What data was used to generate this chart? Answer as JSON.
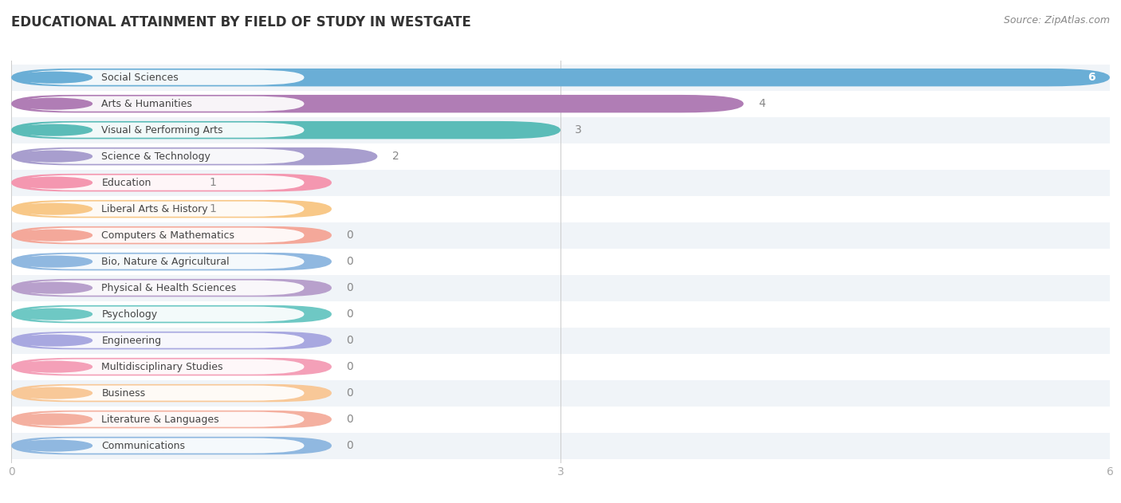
{
  "title": "EDUCATIONAL ATTAINMENT BY FIELD OF STUDY IN WESTGATE",
  "source": "Source: ZipAtlas.com",
  "categories": [
    "Social Sciences",
    "Arts & Humanities",
    "Visual & Performing Arts",
    "Science & Technology",
    "Education",
    "Liberal Arts & History",
    "Computers & Mathematics",
    "Bio, Nature & Agricultural",
    "Physical & Health Sciences",
    "Psychology",
    "Engineering",
    "Multidisciplinary Studies",
    "Business",
    "Literature & Languages",
    "Communications"
  ],
  "values": [
    6,
    4,
    3,
    2,
    1,
    1,
    0,
    0,
    0,
    0,
    0,
    0,
    0,
    0,
    0
  ],
  "bar_colors": [
    "#6aaed6",
    "#b07db5",
    "#5bbcb8",
    "#a89ece",
    "#f497b0",
    "#f8c888",
    "#f4a89a",
    "#90b8e0",
    "#b8a0cc",
    "#6ec8c4",
    "#a8a8e0",
    "#f4a0b8",
    "#f8c898",
    "#f4b0a0",
    "#90b8e0"
  ],
  "xlim": [
    0,
    6
  ],
  "xticks": [
    0,
    3,
    6
  ],
  "background_color": "#ffffff",
  "row_bg_odd": "#f0f4f8",
  "row_bg_even": "#ffffff"
}
